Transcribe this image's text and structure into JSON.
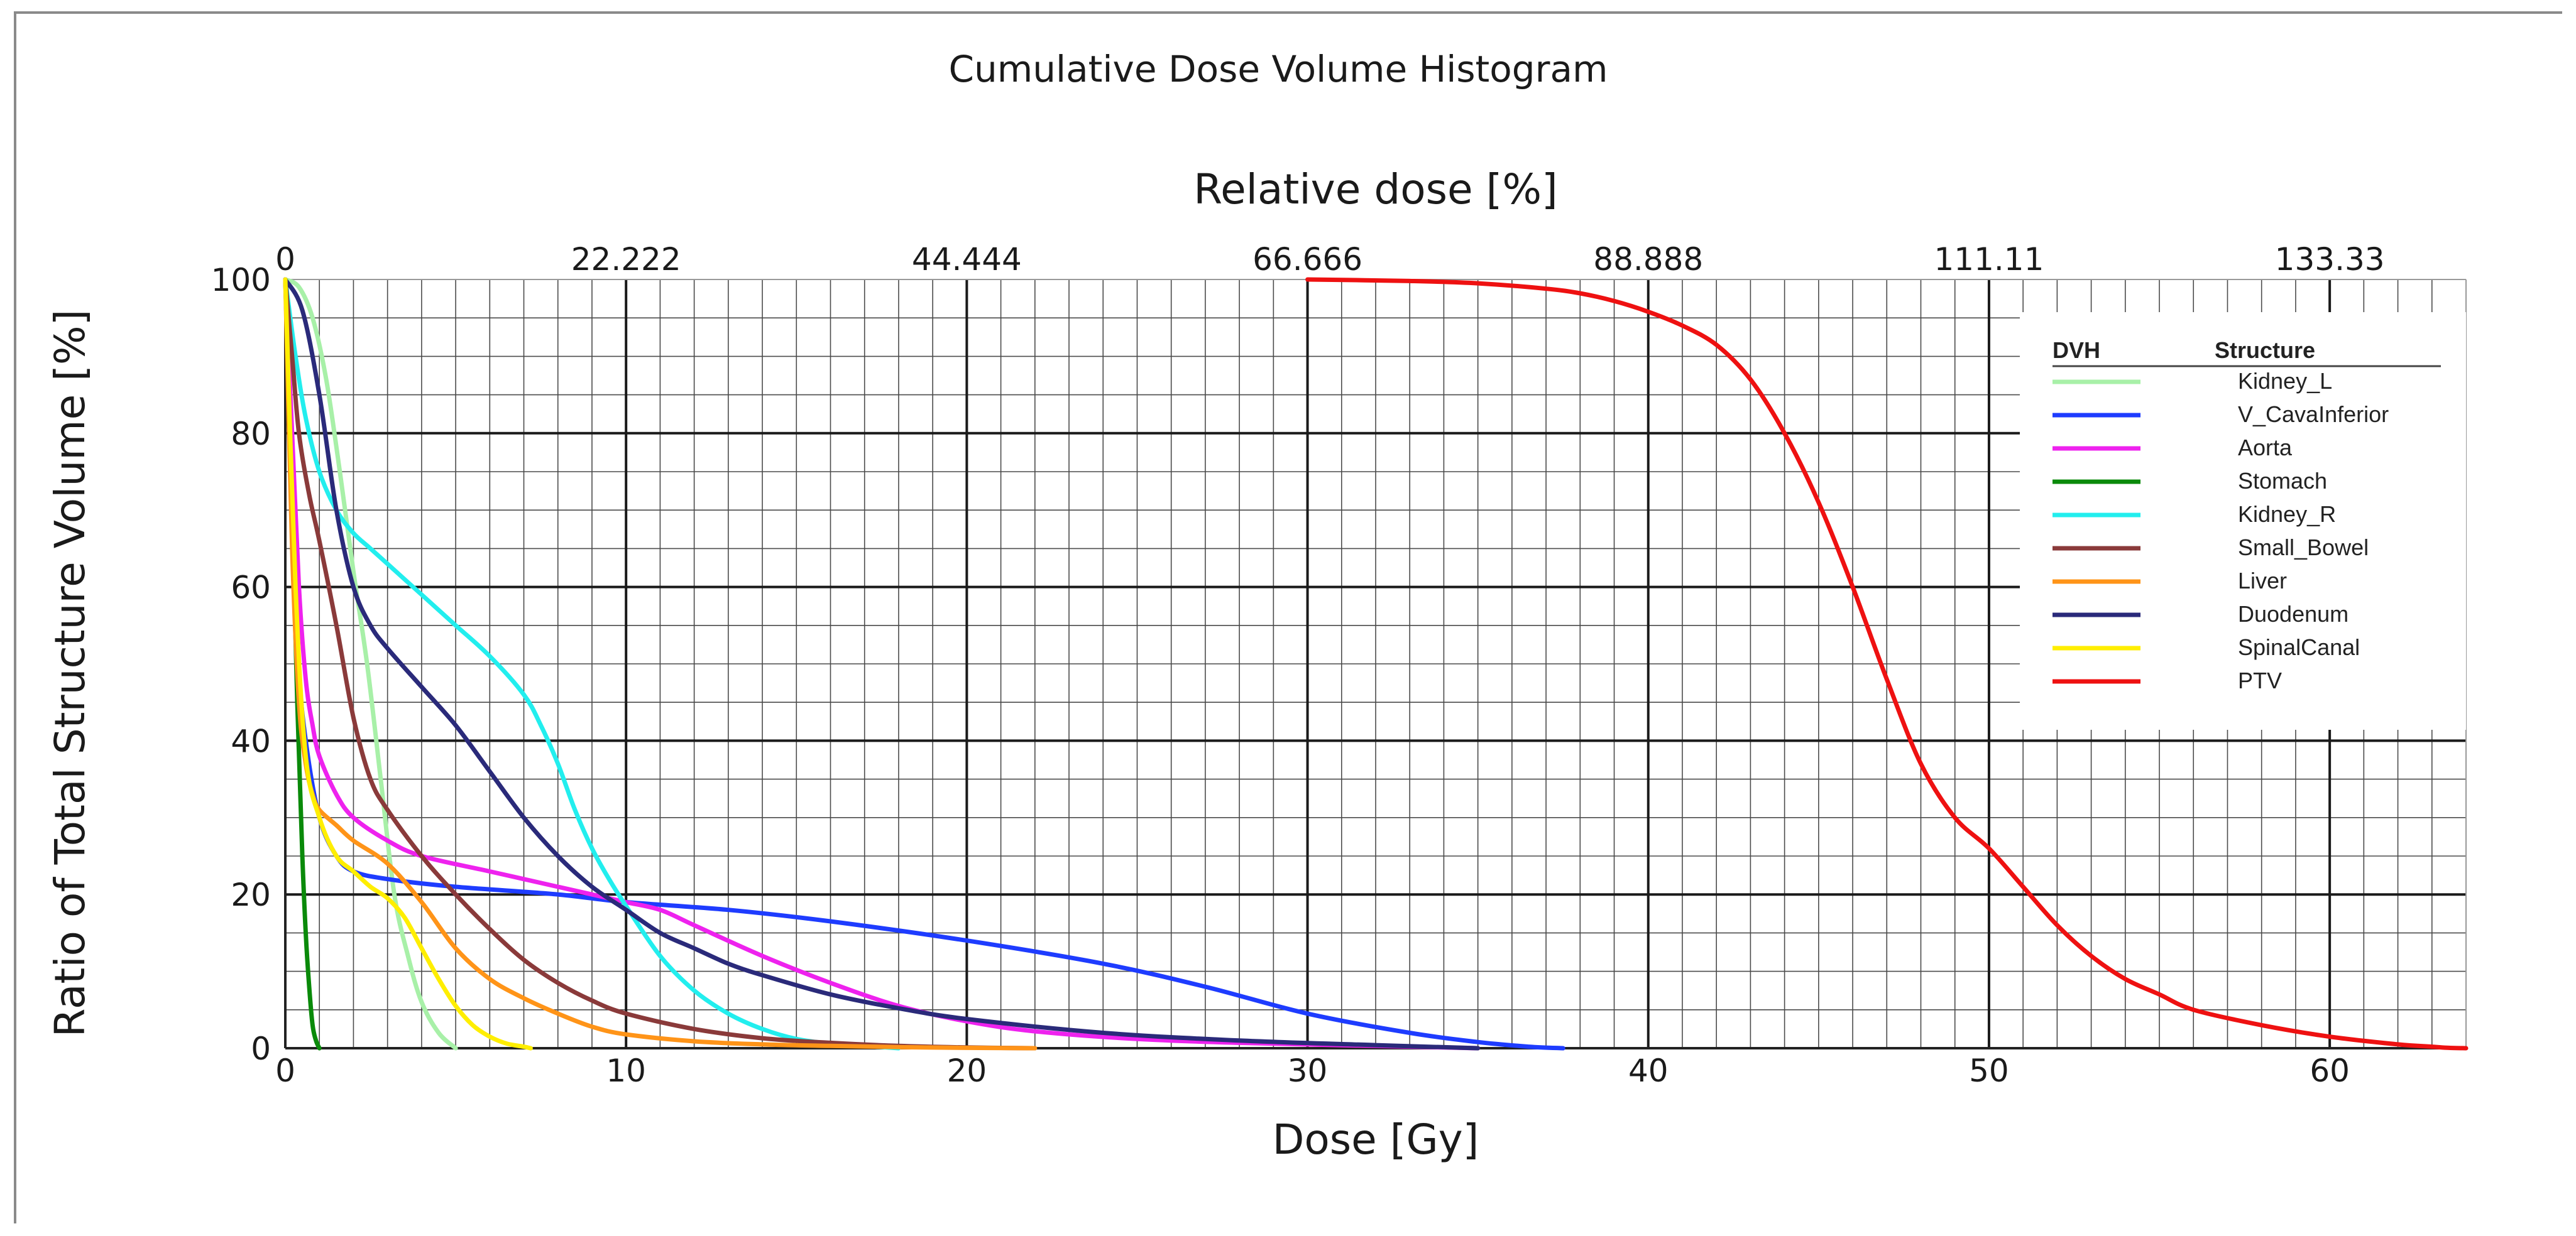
{
  "chart_data": {
    "type": "line",
    "title": "Cumulative Dose Volume Histogram",
    "xlabel": "Dose [Gy]",
    "ylabel": "Ratio of Total Structure Volume [%]",
    "x2label": "Relative dose [%]",
    "xlim": [
      0,
      64
    ],
    "ylim": [
      0,
      100
    ],
    "xticks": [
      "0",
      "10",
      "20",
      "30",
      "40",
      "50",
      "60"
    ],
    "yticks": [
      "0",
      "20",
      "40",
      "60",
      "80",
      "100"
    ],
    "x2ticks": [
      {
        "value": 0,
        "label": "0"
      },
      {
        "value": 10,
        "label": "22.222"
      },
      {
        "value": 20,
        "label": "44.444"
      },
      {
        "value": 30,
        "label": "66.666"
      },
      {
        "value": 40,
        "label": "88.888"
      },
      {
        "value": 50,
        "label": "111.11"
      },
      {
        "value": 60,
        "label": "133.33"
      }
    ],
    "grid": true,
    "legend_position": "top-right",
    "legend_header": {
      "dvh": "DVH",
      "structure": "Structure"
    },
    "series": [
      {
        "name": "Kidney_L",
        "color": "#a8f0a8",
        "x": [
          0,
          0.4,
          0.8,
          1.2,
          1.6,
          2.0,
          2.4,
          2.8,
          3.2,
          3.6,
          4.0,
          4.5,
          5.0
        ],
        "y": [
          100,
          99,
          95,
          87,
          75,
          62,
          50,
          35,
          20,
          12,
          6,
          2,
          0
        ]
      },
      {
        "name": "V_CavaInferior",
        "color": "#1e3cff",
        "x": [
          0,
          0.2,
          0.4,
          0.6,
          1.0,
          1.5,
          2.0,
          3.0,
          5.0,
          8.0,
          10.0,
          13.0,
          16.0,
          20.0,
          24.0,
          27.0,
          30.0,
          33.0,
          35.0,
          36.5,
          37.5
        ],
        "y": [
          100,
          75,
          50,
          40,
          30,
          25,
          23,
          22,
          21,
          20,
          19,
          18,
          16.5,
          14,
          11,
          8,
          4.5,
          2,
          0.8,
          0.2,
          0
        ]
      },
      {
        "name": "Aorta",
        "color": "#ee22ee",
        "x": [
          0,
          0.2,
          0.4,
          0.6,
          0.8,
          1.0,
          1.5,
          2.0,
          3.0,
          4.0,
          6.0,
          8.0,
          9.0,
          10.0,
          11.0,
          12.0,
          14.0,
          16.0,
          18.0,
          20.0,
          22.0,
          25.0,
          28.0,
          32.0,
          35.0
        ],
        "y": [
          100,
          80,
          60,
          48,
          42,
          38,
          33,
          30,
          27,
          25,
          23,
          21,
          20,
          19,
          18,
          16,
          12,
          8.5,
          5.5,
          3.5,
          2.2,
          1.2,
          0.7,
          0.3,
          0
        ]
      },
      {
        "name": "Stomach",
        "color": "#0a8a0a",
        "x": [
          0,
          0.2,
          0.35,
          0.5,
          0.6,
          0.7,
          0.8,
          0.9,
          1.0
        ],
        "y": [
          100,
          70,
          45,
          25,
          15,
          8,
          3,
          1,
          0
        ]
      },
      {
        "name": "Kidney_R",
        "color": "#22eeee",
        "x": [
          0,
          0.3,
          0.6,
          1.0,
          1.5,
          2.0,
          2.5,
          3.0,
          4.0,
          5.0,
          6.0,
          7.0,
          7.5,
          8.0,
          8.5,
          9.0,
          9.5,
          10.0,
          11.0,
          12.0,
          13.0,
          14.0,
          15.0,
          16.0,
          17.0,
          18.0
        ],
        "y": [
          100,
          90,
          82,
          75,
          70,
          67,
          65,
          63,
          59,
          55,
          51,
          46,
          42,
          37,
          31,
          26,
          22,
          18.5,
          12,
          7.5,
          4.5,
          2.5,
          1.2,
          0.6,
          0.3,
          0
        ]
      },
      {
        "name": "Small_Bowel",
        "color": "#8a3a3a",
        "x": [
          0,
          0.2,
          0.4,
          0.7,
          1.0,
          1.5,
          2.0,
          2.5,
          3.0,
          4.0,
          5.0,
          6.0,
          7.0,
          8.0,
          9.0,
          10.0,
          12.0,
          14.0,
          16.0,
          18.0,
          20.0,
          22.0
        ],
        "y": [
          100,
          90,
          80,
          72,
          66,
          55,
          43,
          35,
          31,
          25,
          20,
          15.5,
          11.5,
          8.5,
          6.2,
          4.5,
          2.5,
          1.3,
          0.7,
          0.3,
          0.1,
          0
        ]
      },
      {
        "name": "Liver",
        "color": "#ff9418",
        "x": [
          0,
          0.2,
          0.4,
          0.6,
          0.8,
          1.0,
          1.5,
          2.0,
          3.0,
          4.0,
          5.0,
          6.0,
          7.0,
          8.0,
          9.0,
          10.0,
          12.0,
          14.0,
          16.0,
          18.0,
          20.0,
          22.0
        ],
        "y": [
          100,
          65,
          45,
          37,
          33,
          31,
          29,
          27,
          24,
          19,
          13,
          9,
          6.5,
          4.5,
          2.8,
          1.8,
          0.9,
          0.5,
          0.3,
          0.15,
          0.05,
          0
        ]
      },
      {
        "name": "Duodenum",
        "color": "#2a2a7a",
        "x": [
          0,
          0.5,
          1.0,
          1.5,
          2.0,
          2.5,
          3.0,
          4.0,
          5.0,
          6.0,
          7.0,
          8.0,
          9.0,
          10.0,
          11.0,
          12.0,
          13.0,
          14.0,
          16.0,
          18.0,
          20.0,
          24.0,
          28.0,
          32.0,
          35.0
        ],
        "y": [
          100,
          96,
          85,
          70,
          60,
          55,
          52,
          47,
          42,
          36,
          30,
          25,
          21,
          18,
          15,
          13,
          11,
          9.5,
          7,
          5.2,
          3.8,
          2,
          1,
          0.4,
          0
        ]
      },
      {
        "name": "SpinalCanal",
        "color": "#ffee00",
        "x": [
          0,
          0.3,
          0.6,
          1.0,
          1.5,
          2.0,
          2.5,
          3.0,
          3.5,
          4.0,
          4.5,
          5.0,
          5.5,
          6.0,
          6.5,
          7.0,
          7.2
        ],
        "y": [
          100,
          60,
          38,
          30,
          25,
          23,
          21,
          19.5,
          17,
          13,
          9,
          5.5,
          3,
          1.5,
          0.6,
          0.2,
          0
        ]
      },
      {
        "name": "PTV",
        "color": "#ee1111",
        "x": [
          30,
          33,
          35,
          37,
          38,
          39,
          40,
          41,
          42,
          43,
          44,
          45,
          46,
          47,
          48,
          49,
          50,
          51,
          52,
          53,
          54,
          55,
          56,
          58,
          60,
          62,
          63,
          63.5,
          64
        ],
        "y": [
          100,
          99.8,
          99.5,
          98.8,
          98.2,
          97.2,
          95.8,
          94,
          91.5,
          87,
          80,
          71,
          60,
          48,
          37,
          30,
          26,
          21,
          16,
          12,
          9,
          7,
          5,
          3,
          1.5,
          0.5,
          0.2,
          0.05,
          0
        ]
      }
    ]
  }
}
